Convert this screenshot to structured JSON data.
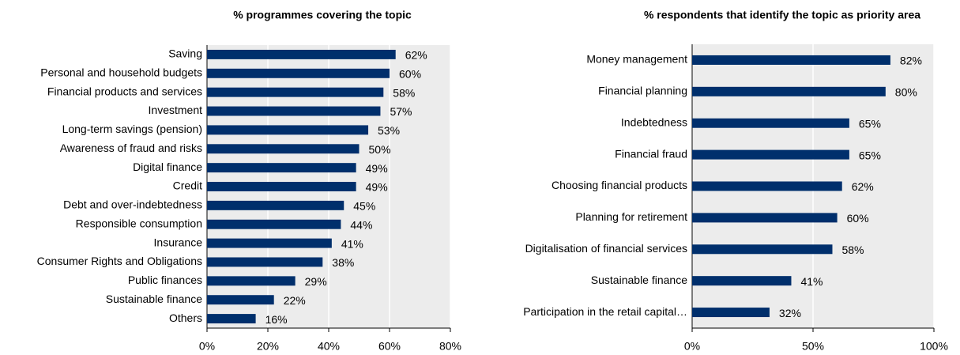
{
  "chart_data": [
    {
      "type": "bar",
      "orientation": "horizontal",
      "title": "% programmes covering the topic",
      "categories": [
        "Saving",
        "Personal and household budgets",
        "Financial products and services",
        "Investment",
        "Long-term savings (pension)",
        "Awareness of fraud and risks",
        "Digital finance",
        "Credit",
        "Debt and over-indebtedness",
        "Responsible consumption",
        "Insurance",
        "Consumer Rights and Obligations",
        "Public finances",
        "Sustainable finance",
        "Others"
      ],
      "values": [
        62,
        60,
        58,
        57,
        53,
        50,
        49,
        49,
        45,
        44,
        41,
        38,
        29,
        22,
        16
      ],
      "value_labels": [
        "62%",
        "60%",
        "58%",
        "57%",
        "53%",
        "50%",
        "49%",
        "49%",
        "45%",
        "44%",
        "41%",
        "38%",
        "29%",
        "22%",
        "16%"
      ],
      "color": "#002f6c",
      "xlim": [
        0,
        80
      ],
      "xticks": [
        {
          "value": 0,
          "label": "0%"
        },
        {
          "value": 20,
          "label": "20%"
        },
        {
          "value": 40,
          "label": "40%"
        },
        {
          "value": 60,
          "label": "60%"
        },
        {
          "value": 80,
          "label": "80%"
        }
      ],
      "grid": true
    },
    {
      "type": "bar",
      "orientation": "horizontal",
      "title": "% respondents that identify the topic as priority area",
      "categories": [
        "Money management",
        "Financial planning",
        "Indebtedness",
        "Financial fraud",
        "Choosing financial products",
        "Planning for retirement",
        "Digitalisation of financial services",
        "Sustainable finance",
        "Participation in the retail capital…"
      ],
      "values": [
        82,
        80,
        65,
        65,
        62,
        60,
        58,
        41,
        32
      ],
      "value_labels": [
        "82%",
        "80%",
        "65%",
        "65%",
        "62%",
        "60%",
        "58%",
        "41%",
        "32%"
      ],
      "color": "#002f6c",
      "xlim": [
        0,
        100
      ],
      "xticks": [
        {
          "value": 0,
          "label": "0%"
        },
        {
          "value": 50,
          "label": "50%"
        },
        {
          "value": 100,
          "label": "100%"
        }
      ],
      "grid": true
    }
  ]
}
